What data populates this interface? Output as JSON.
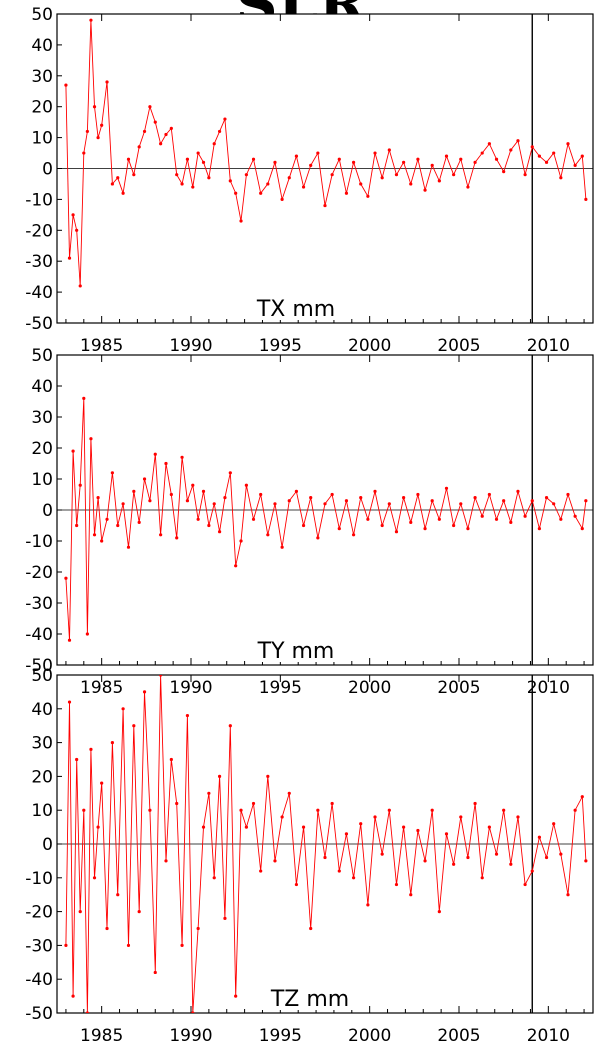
{
  "header": {
    "title_partial": "SLR"
  },
  "chart_data": [
    {
      "type": "line",
      "series_label": "TX mm",
      "x_range": [
        1982.5,
        2012.5
      ],
      "y_range": [
        -50,
        50
      ],
      "y_ticks": [
        50,
        40,
        30,
        20,
        10,
        0,
        -10,
        -20,
        -30,
        -40,
        -50
      ],
      "x_ticks": [
        1985,
        1990,
        1995,
        2000,
        2005,
        2010
      ],
      "zero_line": true,
      "marker_year": 2009.1,
      "line_color": "#ff0000",
      "x": [
        1983.0,
        1983.2,
        1983.4,
        1983.6,
        1983.8,
        1984.0,
        1984.2,
        1984.4,
        1984.6,
        1984.8,
        1985.0,
        1985.3,
        1985.6,
        1985.9,
        1986.2,
        1986.5,
        1986.8,
        1987.1,
        1987.4,
        1987.7,
        1988.0,
        1988.3,
        1988.6,
        1988.9,
        1989.2,
        1989.5,
        1989.8,
        1990.1,
        1990.4,
        1990.7,
        1991.0,
        1991.3,
        1991.6,
        1991.9,
        1992.2,
        1992.5,
        1992.8,
        1993.1,
        1993.5,
        1993.9,
        1994.3,
        1994.7,
        1995.1,
        1995.5,
        1995.9,
        1996.3,
        1996.7,
        1997.1,
        1997.5,
        1997.9,
        1998.3,
        1998.7,
        1999.1,
        1999.5,
        1999.9,
        2000.3,
        2000.7,
        2001.1,
        2001.5,
        2001.9,
        2002.3,
        2002.7,
        2003.1,
        2003.5,
        2003.9,
        2004.3,
        2004.7,
        2005.1,
        2005.5,
        2005.9,
        2006.3,
        2006.7,
        2007.1,
        2007.5,
        2007.9,
        2008.3,
        2008.7,
        2009.1,
        2009.5,
        2009.9,
        2010.3,
        2010.7,
        2011.1,
        2011.5,
        2011.9,
        2012.1
      ],
      "y": [
        27,
        -29,
        -15,
        -20,
        -38,
        5,
        12,
        48,
        20,
        10,
        14,
        28,
        -5,
        -3,
        -8,
        3,
        -2,
        7,
        12,
        20,
        15,
        8,
        11,
        13,
        -2,
        -5,
        3,
        -6,
        5,
        2,
        -3,
        8,
        12,
        16,
        -4,
        -8,
        -17,
        -2,
        3,
        -8,
        -5,
        2,
        -10,
        -3,
        4,
        -6,
        1,
        5,
        -12,
        -2,
        3,
        -8,
        2,
        -5,
        -9,
        5,
        -3,
        6,
        -2,
        2,
        -5,
        3,
        -7,
        1,
        -4,
        4,
        -2,
        3,
        -6,
        2,
        5,
        8,
        3,
        -1,
        6,
        9,
        -2,
        7,
        4,
        2,
        5,
        -3,
        8,
        1,
        4,
        -10
      ]
    },
    {
      "type": "line",
      "series_label": "TY mm",
      "x_range": [
        1982.5,
        2012.5
      ],
      "y_range": [
        -50,
        50
      ],
      "y_ticks": [
        50,
        40,
        30,
        20,
        10,
        0,
        -10,
        -20,
        -30,
        -40,
        -50
      ],
      "x_ticks": [
        1985,
        1990,
        1995,
        2000,
        2005,
        2010
      ],
      "zero_line": true,
      "marker_year": 2009.1,
      "line_color": "#ff0000",
      "x": [
        1983.0,
        1983.2,
        1983.4,
        1983.6,
        1983.8,
        1984.0,
        1984.2,
        1984.4,
        1984.6,
        1984.8,
        1985.0,
        1985.3,
        1985.6,
        1985.9,
        1986.2,
        1986.5,
        1986.8,
        1987.1,
        1987.4,
        1987.7,
        1988.0,
        1988.3,
        1988.6,
        1988.9,
        1989.2,
        1989.5,
        1989.8,
        1990.1,
        1990.4,
        1990.7,
        1991.0,
        1991.3,
        1991.6,
        1991.9,
        1992.2,
        1992.5,
        1992.8,
        1993.1,
        1993.5,
        1993.9,
        1994.3,
        1994.7,
        1995.1,
        1995.5,
        1995.9,
        1996.3,
        1996.7,
        1997.1,
        1997.5,
        1997.9,
        1998.3,
        1998.7,
        1999.1,
        1999.5,
        1999.9,
        2000.3,
        2000.7,
        2001.1,
        2001.5,
        2001.9,
        2002.3,
        2002.7,
        2003.1,
        2003.5,
        2003.9,
        2004.3,
        2004.7,
        2005.1,
        2005.5,
        2005.9,
        2006.3,
        2006.7,
        2007.1,
        2007.5,
        2007.9,
        2008.3,
        2008.7,
        2009.1,
        2009.5,
        2009.9,
        2010.3,
        2010.7,
        2011.1,
        2011.5,
        2011.9,
        2012.1
      ],
      "y": [
        -22,
        -42,
        19,
        -5,
        8,
        36,
        -40,
        23,
        -8,
        4,
        -10,
        -3,
        12,
        -5,
        2,
        -12,
        6,
        -4,
        10,
        3,
        18,
        -8,
        15,
        5,
        -9,
        17,
        3,
        8,
        -3,
        6,
        -5,
        2,
        -7,
        4,
        12,
        -18,
        -10,
        8,
        -3,
        5,
        -8,
        2,
        -12,
        3,
        6,
        -5,
        4,
        -9,
        2,
        5,
        -6,
        3,
        -8,
        4,
        -3,
        6,
        -5,
        2,
        -7,
        4,
        -4,
        5,
        -6,
        3,
        -3,
        7,
        -5,
        2,
        -6,
        4,
        -2,
        5,
        -3,
        3,
        -4,
        6,
        -2,
        3,
        -6,
        4,
        2,
        -3,
        5,
        -2,
        -6,
        3
      ]
    },
    {
      "type": "line",
      "series_label": "TZ mm",
      "x_range": [
        1982.5,
        2012.5
      ],
      "y_range": [
        -50,
        50
      ],
      "y_ticks": [
        50,
        40,
        30,
        20,
        10,
        0,
        -10,
        -20,
        -30,
        -40,
        -50
      ],
      "x_ticks": [
        1985,
        1990,
        1995,
        2000,
        2005,
        2010
      ],
      "zero_line": true,
      "marker_year": 2009.1,
      "line_color": "#ff0000",
      "x": [
        1983.0,
        1983.2,
        1983.4,
        1983.6,
        1983.8,
        1984.0,
        1984.2,
        1984.4,
        1984.6,
        1984.8,
        1985.0,
        1985.3,
        1985.6,
        1985.9,
        1986.2,
        1986.5,
        1986.8,
        1987.1,
        1987.4,
        1987.7,
        1988.0,
        1988.3,
        1988.6,
        1988.9,
        1989.2,
        1989.5,
        1989.8,
        1990.1,
        1990.4,
        1990.7,
        1991.0,
        1991.3,
        1991.6,
        1991.9,
        1992.2,
        1992.5,
        1992.8,
        1993.1,
        1993.5,
        1993.9,
        1994.3,
        1994.7,
        1995.1,
        1995.5,
        1995.9,
        1996.3,
        1996.7,
        1997.1,
        1997.5,
        1997.9,
        1998.3,
        1998.7,
        1999.1,
        1999.5,
        1999.9,
        2000.3,
        2000.7,
        2001.1,
        2001.5,
        2001.9,
        2002.3,
        2002.7,
        2003.1,
        2003.5,
        2003.9,
        2004.3,
        2004.7,
        2005.1,
        2005.5,
        2005.9,
        2006.3,
        2006.7,
        2007.1,
        2007.5,
        2007.9,
        2008.3,
        2008.7,
        2009.1,
        2009.5,
        2009.9,
        2010.3,
        2010.7,
        2011.1,
        2011.5,
        2011.9,
        2012.1
      ],
      "y": [
        -30,
        42,
        -45,
        25,
        -20,
        10,
        -50,
        28,
        -10,
        5,
        18,
        -25,
        30,
        -15,
        40,
        -30,
        35,
        -20,
        45,
        10,
        -38,
        50,
        -5,
        25,
        12,
        -30,
        38,
        -50,
        -25,
        5,
        15,
        -10,
        20,
        -22,
        35,
        -45,
        10,
        5,
        12,
        -8,
        20,
        -5,
        8,
        15,
        -12,
        5,
        -25,
        10,
        -4,
        12,
        -8,
        3,
        -10,
        6,
        -18,
        8,
        -3,
        10,
        -12,
        5,
        -15,
        4,
        -5,
        10,
        -20,
        3,
        -6,
        8,
        -4,
        12,
        -10,
        5,
        -3,
        10,
        -6,
        8,
        -12,
        -8,
        2,
        -4,
        6,
        -3,
        -15,
        10,
        14,
        -5
      ]
    }
  ]
}
